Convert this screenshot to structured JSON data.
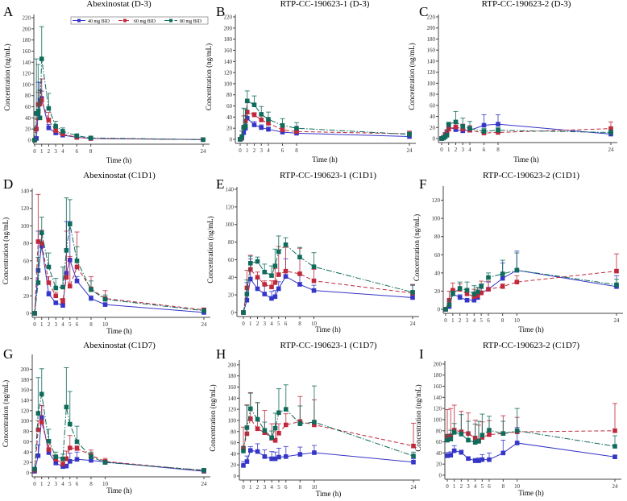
{
  "colors": {
    "s40": "#3535c8",
    "s60": "#c0283c",
    "s80": "#0f6b5b"
  },
  "legend": [
    "40 mg BID",
    "60 mg BID",
    "80 mg BID"
  ],
  "chart_data": [
    {
      "letter": "A",
      "title": "Abexinostat (D-3)",
      "type": "line",
      "xlabel": "Time (h)",
      "ylabel": "Concentration (ng/mL)",
      "ylim": [
        0,
        220
      ],
      "yticks": [
        0,
        20,
        40,
        60,
        80,
        100,
        120,
        140,
        160,
        180,
        200,
        220
      ],
      "xticks": [
        0,
        1,
        2,
        3,
        4,
        6,
        8,
        24
      ],
      "legend": "top-right",
      "x": [
        0,
        0.25,
        0.5,
        0.75,
        1,
        2,
        3,
        4,
        6,
        8,
        24
      ],
      "series": [
        {
          "name": "40 mg BID",
          "values": [
            0,
            3,
            47,
            72,
            75,
            22,
            13,
            9,
            5,
            3,
            1
          ],
          "sd": [
            0,
            3,
            57,
            32,
            13,
            6,
            3,
            3,
            1,
            1,
            1
          ]
        },
        {
          "name": "60 mg BID",
          "values": [
            0,
            20,
            64,
            65,
            72,
            36,
            17,
            11,
            5,
            3,
            1
          ],
          "sd": [
            0,
            18,
            22,
            24,
            38,
            14,
            6,
            5,
            2,
            1,
            1
          ]
        },
        {
          "name": "80 mg BID",
          "values": [
            0,
            48,
            52,
            40,
            146,
            57,
            25,
            16,
            8,
            4,
            1
          ],
          "sd": [
            0,
            98,
            84,
            50,
            58,
            27,
            9,
            6,
            2,
            2,
            1
          ]
        }
      ]
    },
    {
      "letter": "B",
      "title": "RTP-CC-190623-1 (D-3)",
      "type": "line",
      "xlabel": "Time (h)",
      "ylabel": "Concentration (ng/mL)",
      "ylim": [
        0,
        220
      ],
      "yticks": [
        0,
        20,
        40,
        60,
        80,
        100,
        120,
        140,
        160,
        180,
        200,
        220
      ],
      "xticks": [
        0,
        1,
        2,
        3,
        4,
        6,
        8,
        24
      ],
      "x": [
        0,
        0.25,
        0.5,
        0.75,
        1,
        2,
        3,
        4,
        6,
        8,
        24
      ],
      "series": [
        {
          "name": "40 mg BID",
          "values": [
            0,
            2,
            12,
            20,
            38,
            26,
            21,
            18,
            13,
            11,
            5
          ],
          "sd": [
            0,
            2,
            8,
            22,
            8,
            6,
            5,
            4,
            3,
            3,
            2
          ]
        },
        {
          "name": "60 mg BID",
          "values": [
            0,
            3,
            22,
            33,
            49,
            44,
            35,
            29,
            17,
            14,
            10
          ],
          "sd": [
            0,
            3,
            20,
            10,
            18,
            4,
            8,
            6,
            6,
            4,
            5
          ]
        },
        {
          "name": "80 mg BID",
          "values": [
            0,
            5,
            21,
            24,
            69,
            62,
            45,
            36,
            25,
            20,
            9
          ],
          "sd": [
            0,
            10,
            35,
            30,
            18,
            16,
            14,
            13,
            12,
            10,
            4
          ]
        }
      ]
    },
    {
      "letter": "C",
      "title": "RTP-CC-190623-2 (D-3)",
      "type": "line",
      "xlabel": "Time (h)",
      "ylabel": "Concentration (ng/mL)",
      "ylim": [
        0,
        220
      ],
      "yticks": [
        0,
        20,
        40,
        60,
        80,
        100,
        120,
        140,
        160,
        180,
        200,
        220
      ],
      "xticks": [
        0,
        1,
        2,
        3,
        4,
        6,
        8,
        24
      ],
      "x": [
        0,
        0.25,
        0.5,
        0.75,
        1,
        2,
        3,
        4,
        6,
        8,
        24
      ],
      "series": [
        {
          "name": "40 mg BID",
          "values": [
            0,
            1,
            6,
            10,
            21,
            16,
            14,
            15,
            24,
            26,
            8
          ],
          "sd": [
            0,
            1,
            5,
            6,
            6,
            4,
            4,
            8,
            19,
            17,
            3
          ]
        },
        {
          "name": "60 mg BID",
          "values": [
            0,
            2,
            5,
            11,
            17,
            21,
            17,
            15,
            10,
            11,
            18
          ],
          "sd": [
            0,
            2,
            4,
            5,
            8,
            8,
            9,
            8,
            5,
            5,
            12
          ]
        },
        {
          "name": "80 mg BID",
          "values": [
            0,
            1,
            3,
            6,
            26,
            30,
            22,
            18,
            13,
            15,
            11
          ],
          "sd": [
            0,
            1,
            3,
            4,
            3,
            19,
            15,
            13,
            5,
            5,
            4
          ]
        }
      ]
    },
    {
      "letter": "D",
      "title": "Abexinostat (C1D1)",
      "type": "line",
      "xlabel": "Time (h)",
      "ylabel": "Concentration (ng/mL)",
      "ylim": [
        0,
        140
      ],
      "yticks": [
        0,
        20,
        40,
        60,
        80,
        100,
        120,
        140
      ],
      "xticks": [
        0,
        1,
        2,
        3,
        4,
        5,
        6,
        8,
        10,
        24
      ],
      "x": [
        0,
        0.5,
        1,
        2,
        3,
        4,
        4.5,
        5,
        6,
        8,
        10,
        24
      ],
      "series": [
        {
          "name": "40 mg BID",
          "values": [
            0,
            49,
            77,
            22,
            12,
            9,
            46,
            61,
            37,
            17,
            10,
            1
          ],
          "sd": [
            0,
            45,
            14,
            3,
            2,
            2,
            59,
            44,
            5,
            3,
            2,
            1
          ]
        },
        {
          "name": "60 mg BID",
          "values": [
            0,
            82,
            80,
            35,
            20,
            14,
            41,
            31,
            53,
            28,
            17,
            4
          ],
          "sd": [
            0,
            54,
            15,
            7,
            4,
            3,
            53,
            34,
            40,
            14,
            9,
            2
          ]
        },
        {
          "name": "80 mg BID",
          "values": [
            0,
            35,
            92,
            53,
            29,
            30,
            72,
            102,
            60,
            27,
            16,
            3
          ],
          "sd": [
            0,
            29,
            18,
            16,
            11,
            23,
            60,
            28,
            16,
            10,
            5,
            2
          ]
        }
      ]
    },
    {
      "letter": "E",
      "title": "RTP-CC-190623-1 (C1D1)",
      "type": "line",
      "xlabel": "Time (h)",
      "ylabel": "Concentration (ng/mL)",
      "ylim": [
        0,
        140
      ],
      "yticks": [
        0,
        20,
        40,
        60,
        80,
        100,
        120,
        140
      ],
      "xticks": [
        0,
        1,
        2,
        3,
        4,
        5,
        6,
        8,
        10,
        24
      ],
      "x": [
        0,
        0.5,
        1,
        2,
        3,
        4,
        4.5,
        5,
        6,
        8,
        10,
        24
      ],
      "series": [
        {
          "name": "40 mg BID",
          "values": [
            0,
            14,
            38,
            27,
            21,
            16,
            18,
            27,
            41,
            32,
            25,
            17
          ],
          "sd": [
            0,
            20,
            23,
            12,
            11,
            8,
            7,
            8,
            20,
            11,
            6,
            14
          ]
        },
        {
          "name": "60 mg BID",
          "values": [
            0,
            28,
            49,
            40,
            32,
            29,
            34,
            43,
            47,
            44,
            36,
            22
          ],
          "sd": [
            0,
            20,
            16,
            6,
            4,
            7,
            16,
            32,
            27,
            29,
            13,
            10
          ]
        },
        {
          "name": "80 mg BID",
          "values": [
            0,
            21,
            56,
            58,
            46,
            42,
            53,
            69,
            77,
            63,
            52,
            23
          ],
          "sd": [
            0,
            16,
            8,
            5,
            9,
            11,
            19,
            18,
            8,
            11,
            16,
            8
          ]
        }
      ]
    },
    {
      "letter": "F",
      "title": "RTP-CC-190623-2 (C1D1)",
      "type": "line",
      "xlabel": "Time (h)",
      "ylabel": "Concentration (ng/mL)",
      "ylim": [
        0,
        140
      ],
      "yticks": [
        0,
        20,
        40,
        60,
        80,
        100,
        120
      ],
      "xticks": [
        0,
        1,
        2,
        3,
        4,
        5,
        6,
        8,
        10,
        24
      ],
      "x": [
        0,
        0.5,
        1,
        2,
        3,
        4,
        4.5,
        5,
        6,
        8,
        10,
        24
      ],
      "series": [
        {
          "name": "40 mg BID",
          "values": [
            0,
            3,
            17,
            13,
            10,
            10,
            13,
            18,
            22,
            34,
            43,
            25
          ],
          "sd": [
            0,
            3,
            2,
            3,
            1,
            2,
            4,
            9,
            8,
            17,
            21,
            12
          ]
        },
        {
          "name": "60 mg BID",
          "values": [
            0,
            10,
            21,
            22,
            17,
            14,
            15,
            18,
            22,
            25,
            30,
            42
          ],
          "sd": [
            0,
            10,
            8,
            6,
            5,
            8,
            9,
            13,
            9,
            3,
            7,
            19
          ]
        },
        {
          "name": "80 mg BID",
          "values": [
            0,
            5,
            17,
            23,
            21,
            17,
            19,
            25,
            35,
            39,
            43,
            27
          ],
          "sd": [
            0,
            5,
            3,
            7,
            9,
            9,
            5,
            3,
            5,
            15,
            19,
            6
          ]
        }
      ]
    },
    {
      "letter": "G",
      "title": "Abexinostat (C1D7)",
      "type": "line",
      "xlabel": "Time (h)",
      "ylabel": "Concentration (ng/mL)",
      "ylim": [
        0,
        210
      ],
      "yticks": [
        0,
        20,
        40,
        60,
        80,
        100,
        120,
        140,
        160,
        180,
        200
      ],
      "xticks": [
        0,
        1,
        2,
        3,
        4,
        5,
        6,
        8,
        10,
        24
      ],
      "x": [
        0,
        0.5,
        1,
        2,
        3,
        4,
        4.5,
        5,
        6,
        8,
        10,
        24
      ],
      "series": [
        {
          "name": "40 mg BID",
          "values": [
            3,
            33,
            107,
            39,
            19,
            12,
            13,
            22,
            26,
            24,
            21,
            3
          ],
          "sd": [
            2,
            21,
            23,
            6,
            4,
            3,
            3,
            16,
            14,
            5,
            3,
            1
          ]
        },
        {
          "name": "60 mg BID",
          "values": [
            5,
            83,
            98,
            45,
            26,
            17,
            27,
            48,
            47,
            34,
            22,
            4
          ],
          "sd": [
            3,
            18,
            32,
            9,
            7,
            6,
            15,
            24,
            5,
            10,
            6,
            2
          ]
        },
        {
          "name": "80 mg BID",
          "values": [
            7,
            115,
            152,
            61,
            31,
            27,
            127,
            94,
            60,
            31,
            20,
            5
          ],
          "sd": [
            3,
            69,
            49,
            23,
            9,
            9,
            76,
            63,
            30,
            9,
            4,
            2
          ]
        }
      ]
    },
    {
      "letter": "H",
      "title": "RTP-CC-190623-1 (C1D7)",
      "type": "line",
      "xlabel": "Time (h)",
      "ylabel": "Concentration (ng/mL)",
      "ylim": [
        0,
        210
      ],
      "yticks": [
        0,
        20,
        40,
        60,
        80,
        100,
        120,
        140,
        160,
        180,
        200
      ],
      "xticks": [
        0,
        1,
        2,
        3,
        4,
        5,
        6,
        8,
        10,
        24
      ],
      "x": [
        0,
        0.5,
        1,
        2,
        3,
        4,
        4.5,
        5,
        6,
        8,
        10,
        24
      ],
      "series": [
        {
          "name": "40 mg BID",
          "values": [
            19,
            26,
            46,
            44,
            35,
            31,
            31,
            34,
            35,
            39,
            42,
            25
          ],
          "sd": [
            7,
            10,
            7,
            14,
            12,
            13,
            12,
            16,
            18,
            13,
            13,
            6
          ]
        },
        {
          "name": "60 mg BID",
          "values": [
            50,
            76,
            103,
            85,
            78,
            68,
            64,
            77,
            92,
            98,
            92,
            54
          ],
          "sd": [
            38,
            52,
            47,
            47,
            40,
            26,
            30,
            17,
            20,
            45,
            45,
            41
          ]
        },
        {
          "name": "80 mg BID",
          "values": [
            45,
            87,
            121,
            102,
            82,
            69,
            86,
            114,
            120,
            94,
            97,
            36
          ],
          "sd": [
            8,
            40,
            28,
            30,
            15,
            12,
            27,
            43,
            44,
            32,
            65,
            7
          ]
        }
      ]
    },
    {
      "letter": "I",
      "title": "RTP-CC-190623-2 (C1D7)",
      "type": "line",
      "xlabel": "Time (h)",
      "ylabel": "Concentration (ng/mL)",
      "ylim": [
        0,
        210
      ],
      "yticks": [
        0,
        20,
        40,
        60,
        80,
        100,
        120,
        140,
        160,
        180,
        200
      ],
      "xticks": [
        0,
        1,
        2,
        3,
        4,
        5,
        6,
        8,
        10,
        24
      ],
      "x": [
        0,
        0.5,
        1,
        2,
        3,
        4,
        4.5,
        5,
        6,
        8,
        10,
        24
      ],
      "series": [
        {
          "name": "40 mg BID",
          "values": [
            35,
            36,
            44,
            41,
            30,
            26,
            26,
            28,
            28,
            40,
            58,
            33
          ],
          "sd": [
            6,
            6,
            9,
            4,
            3,
            4,
            5,
            9,
            12,
            23,
            28,
            3
          ]
        },
        {
          "name": "60 mg BID",
          "values": [
            70,
            71,
            81,
            78,
            75,
            67,
            62,
            68,
            73,
            75,
            78,
            80
          ],
          "sd": [
            48,
            49,
            45,
            37,
            37,
            32,
            28,
            28,
            25,
            32,
            26,
            49
          ]
        },
        {
          "name": "80 mg BID",
          "values": [
            63,
            65,
            77,
            74,
            63,
            59,
            61,
            72,
            81,
            75,
            80,
            52
          ],
          "sd": [
            10,
            16,
            16,
            35,
            34,
            33,
            36,
            38,
            25,
            22,
            40,
            19
          ]
        }
      ]
    }
  ]
}
